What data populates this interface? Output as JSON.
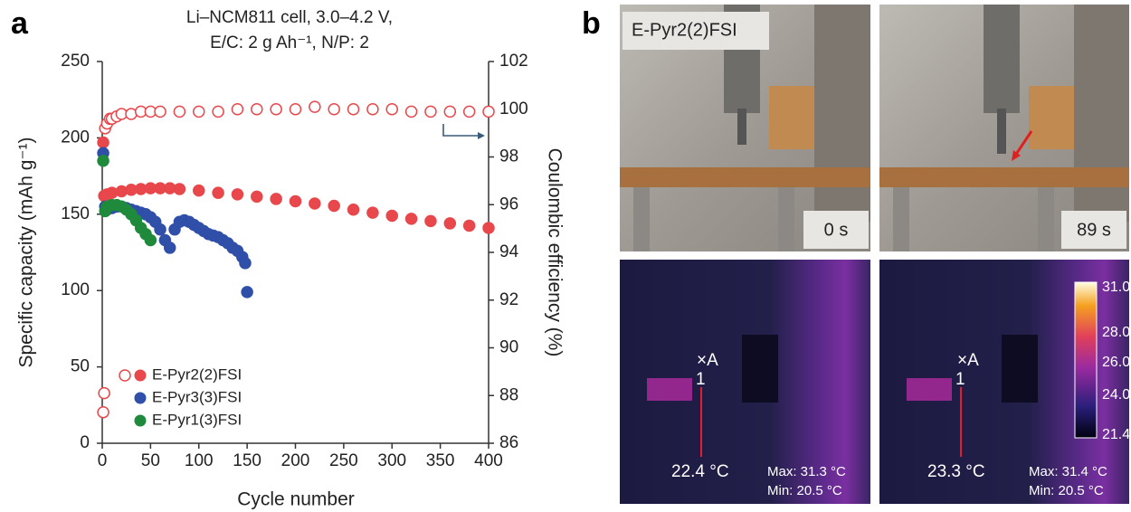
{
  "panel_a": {
    "label": "a"
  },
  "chart_data": {
    "type": "scatter",
    "title": [
      "Li–NCM811 cell, 3.0–4.2 V,",
      "E/C: 2 g Ah⁻¹, N/P: 2"
    ],
    "xlabel": "Cycle number",
    "ylabel": "Specific capacity (mAh g⁻¹)",
    "y2label": "Coulombic efficiency (%)",
    "xlim": [
      0,
      400
    ],
    "xticks": [
      0,
      50,
      100,
      150,
      200,
      250,
      300,
      350,
      400
    ],
    "ylim": [
      0,
      250
    ],
    "yticks": [
      0,
      50,
      100,
      150,
      200,
      250
    ],
    "y2lim": [
      86,
      102
    ],
    "y2ticks": [
      86,
      88,
      90,
      92,
      94,
      96,
      98,
      100,
      102
    ],
    "legend": "lower left",
    "series": [
      {
        "name": "E-Pyr2(2)FSI",
        "color": "#e8474b",
        "filled": true,
        "x": [
          1,
          2,
          5,
          10,
          20,
          30,
          40,
          50,
          60,
          70,
          80,
          100,
          120,
          140,
          160,
          180,
          200,
          220,
          240,
          260,
          280,
          300,
          320,
          340,
          360,
          380,
          400
        ],
        "values": [
          197,
          162,
          163,
          164,
          165,
          166,
          166.5,
          167,
          167,
          167,
          166.5,
          165.5,
          164,
          163,
          161.5,
          160,
          158.5,
          157,
          155.5,
          153,
          151,
          149,
          147,
          145.5,
          144,
          142.5,
          141
        ]
      },
      {
        "color": "#e8474b",
        "filled": false,
        "axis": "y2",
        "x": [
          1,
          2,
          3,
          5,
          8,
          10,
          15,
          20,
          30,
          40,
          50,
          60,
          80,
          100,
          120,
          140,
          160,
          180,
          200,
          220,
          240,
          260,
          280,
          300,
          320,
          340,
          360,
          380,
          400
        ],
        "values": [
          87.3,
          88.1,
          99.2,
          99.4,
          99.6,
          99.6,
          99.7,
          99.8,
          99.8,
          99.9,
          99.9,
          99.9,
          99.9,
          99.9,
          99.9,
          100,
          100,
          100,
          100,
          100.1,
          100,
          100,
          100,
          100,
          99.9,
          99.9,
          99.9,
          99.9,
          99.9
        ]
      },
      {
        "name": "E-Pyr3(3)FSI",
        "color": "#2f4fa8",
        "filled": true,
        "x": [
          1,
          3,
          5,
          10,
          15,
          20,
          25,
          30,
          35,
          40,
          45,
          50,
          55,
          60,
          65,
          70,
          75,
          80,
          85,
          90,
          95,
          100,
          105,
          110,
          115,
          120,
          125,
          130,
          135,
          140,
          145,
          148,
          150
        ],
        "values": [
          190,
          155,
          153,
          154,
          155,
          155,
          154,
          153,
          152,
          151,
          150,
          148,
          145,
          140,
          133,
          128,
          140,
          145,
          146,
          145,
          143,
          141,
          139,
          137,
          136,
          135,
          133,
          131,
          128,
          126,
          122,
          118,
          99
        ]
      },
      {
        "name": "E-Pyr1(3)FSI",
        "color": "#1f8a3c",
        "filled": true,
        "x": [
          1,
          3,
          5,
          10,
          15,
          20,
          25,
          30,
          35,
          40,
          45,
          50
        ],
        "values": [
          185,
          152,
          155,
          156,
          156,
          155,
          153,
          150,
          146,
          141,
          137,
          133
        ]
      }
    ]
  },
  "panel_b": {
    "label": "b",
    "sample": "E-Pyr2(2)FSI",
    "frames": [
      {
        "time": "0 s",
        "marker": "×A",
        "point": "1",
        "temp": "22.4 °C",
        "max": "Max: 31.3 °C",
        "min": "Min: 20.5 °C"
      },
      {
        "time": "89 s",
        "marker": "×A",
        "point": "1",
        "temp": "23.3 °C",
        "max": "Max: 31.4 °C",
        "min": "Min: 20.5 °C"
      }
    ],
    "colorbar": [
      "31.0",
      "28.0",
      "26.0",
      "24.0",
      "21.4"
    ]
  }
}
